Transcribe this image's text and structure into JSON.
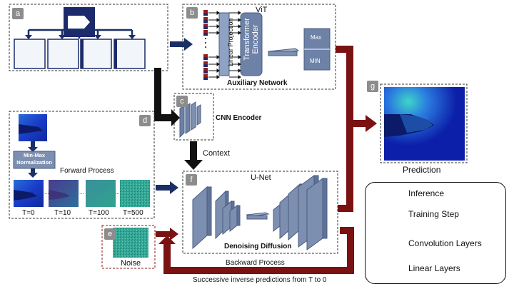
{
  "badges": {
    "a": "a",
    "b": "b",
    "c": "c",
    "d": "d",
    "e": "e",
    "f": "f",
    "g": "g"
  },
  "vit": {
    "title": "ViT",
    "linear_projection": "Linear Projection",
    "transformer_encoder": "Transformer Encoder",
    "max_label": "Max",
    "min_label": "MIN",
    "caption": "Auxiliary Network"
  },
  "cnn": {
    "label": "CNN Encoder"
  },
  "context": {
    "label": "Context"
  },
  "forward": {
    "minmax": "Min-Max Normalization",
    "title": "Forward Process",
    "steps": [
      "T=0",
      "T=10",
      "T=100",
      "T=500"
    ]
  },
  "noise": {
    "label": "Noise"
  },
  "unet": {
    "title": "U-Net",
    "caption": "Denoising Diffusion"
  },
  "prediction": {
    "label": "Prediction"
  },
  "backward": {
    "title": "Backward Process",
    "subtitle": "Successive inverse predictions from T to 0"
  },
  "legend": {
    "items": [
      {
        "label": "Inference",
        "icon": "red-arrow-icon"
      },
      {
        "label": "Training Step",
        "icon": "blue-arrow-icon"
      },
      {
        "label": "Convolution Layers",
        "icon": "conv-layer-icon"
      },
      {
        "label": "Linear Layers",
        "icon": "linear-layer-icon"
      }
    ]
  },
  "colors": {
    "inference": "#7a1212",
    "training": "#1a2f66",
    "layer": "#7d8fb0",
    "layer_dark": "#4a5d80",
    "badge": "#8c8c8c",
    "patch_red": "#9a1b1b",
    "patch_blue": "#1c2a6b"
  }
}
